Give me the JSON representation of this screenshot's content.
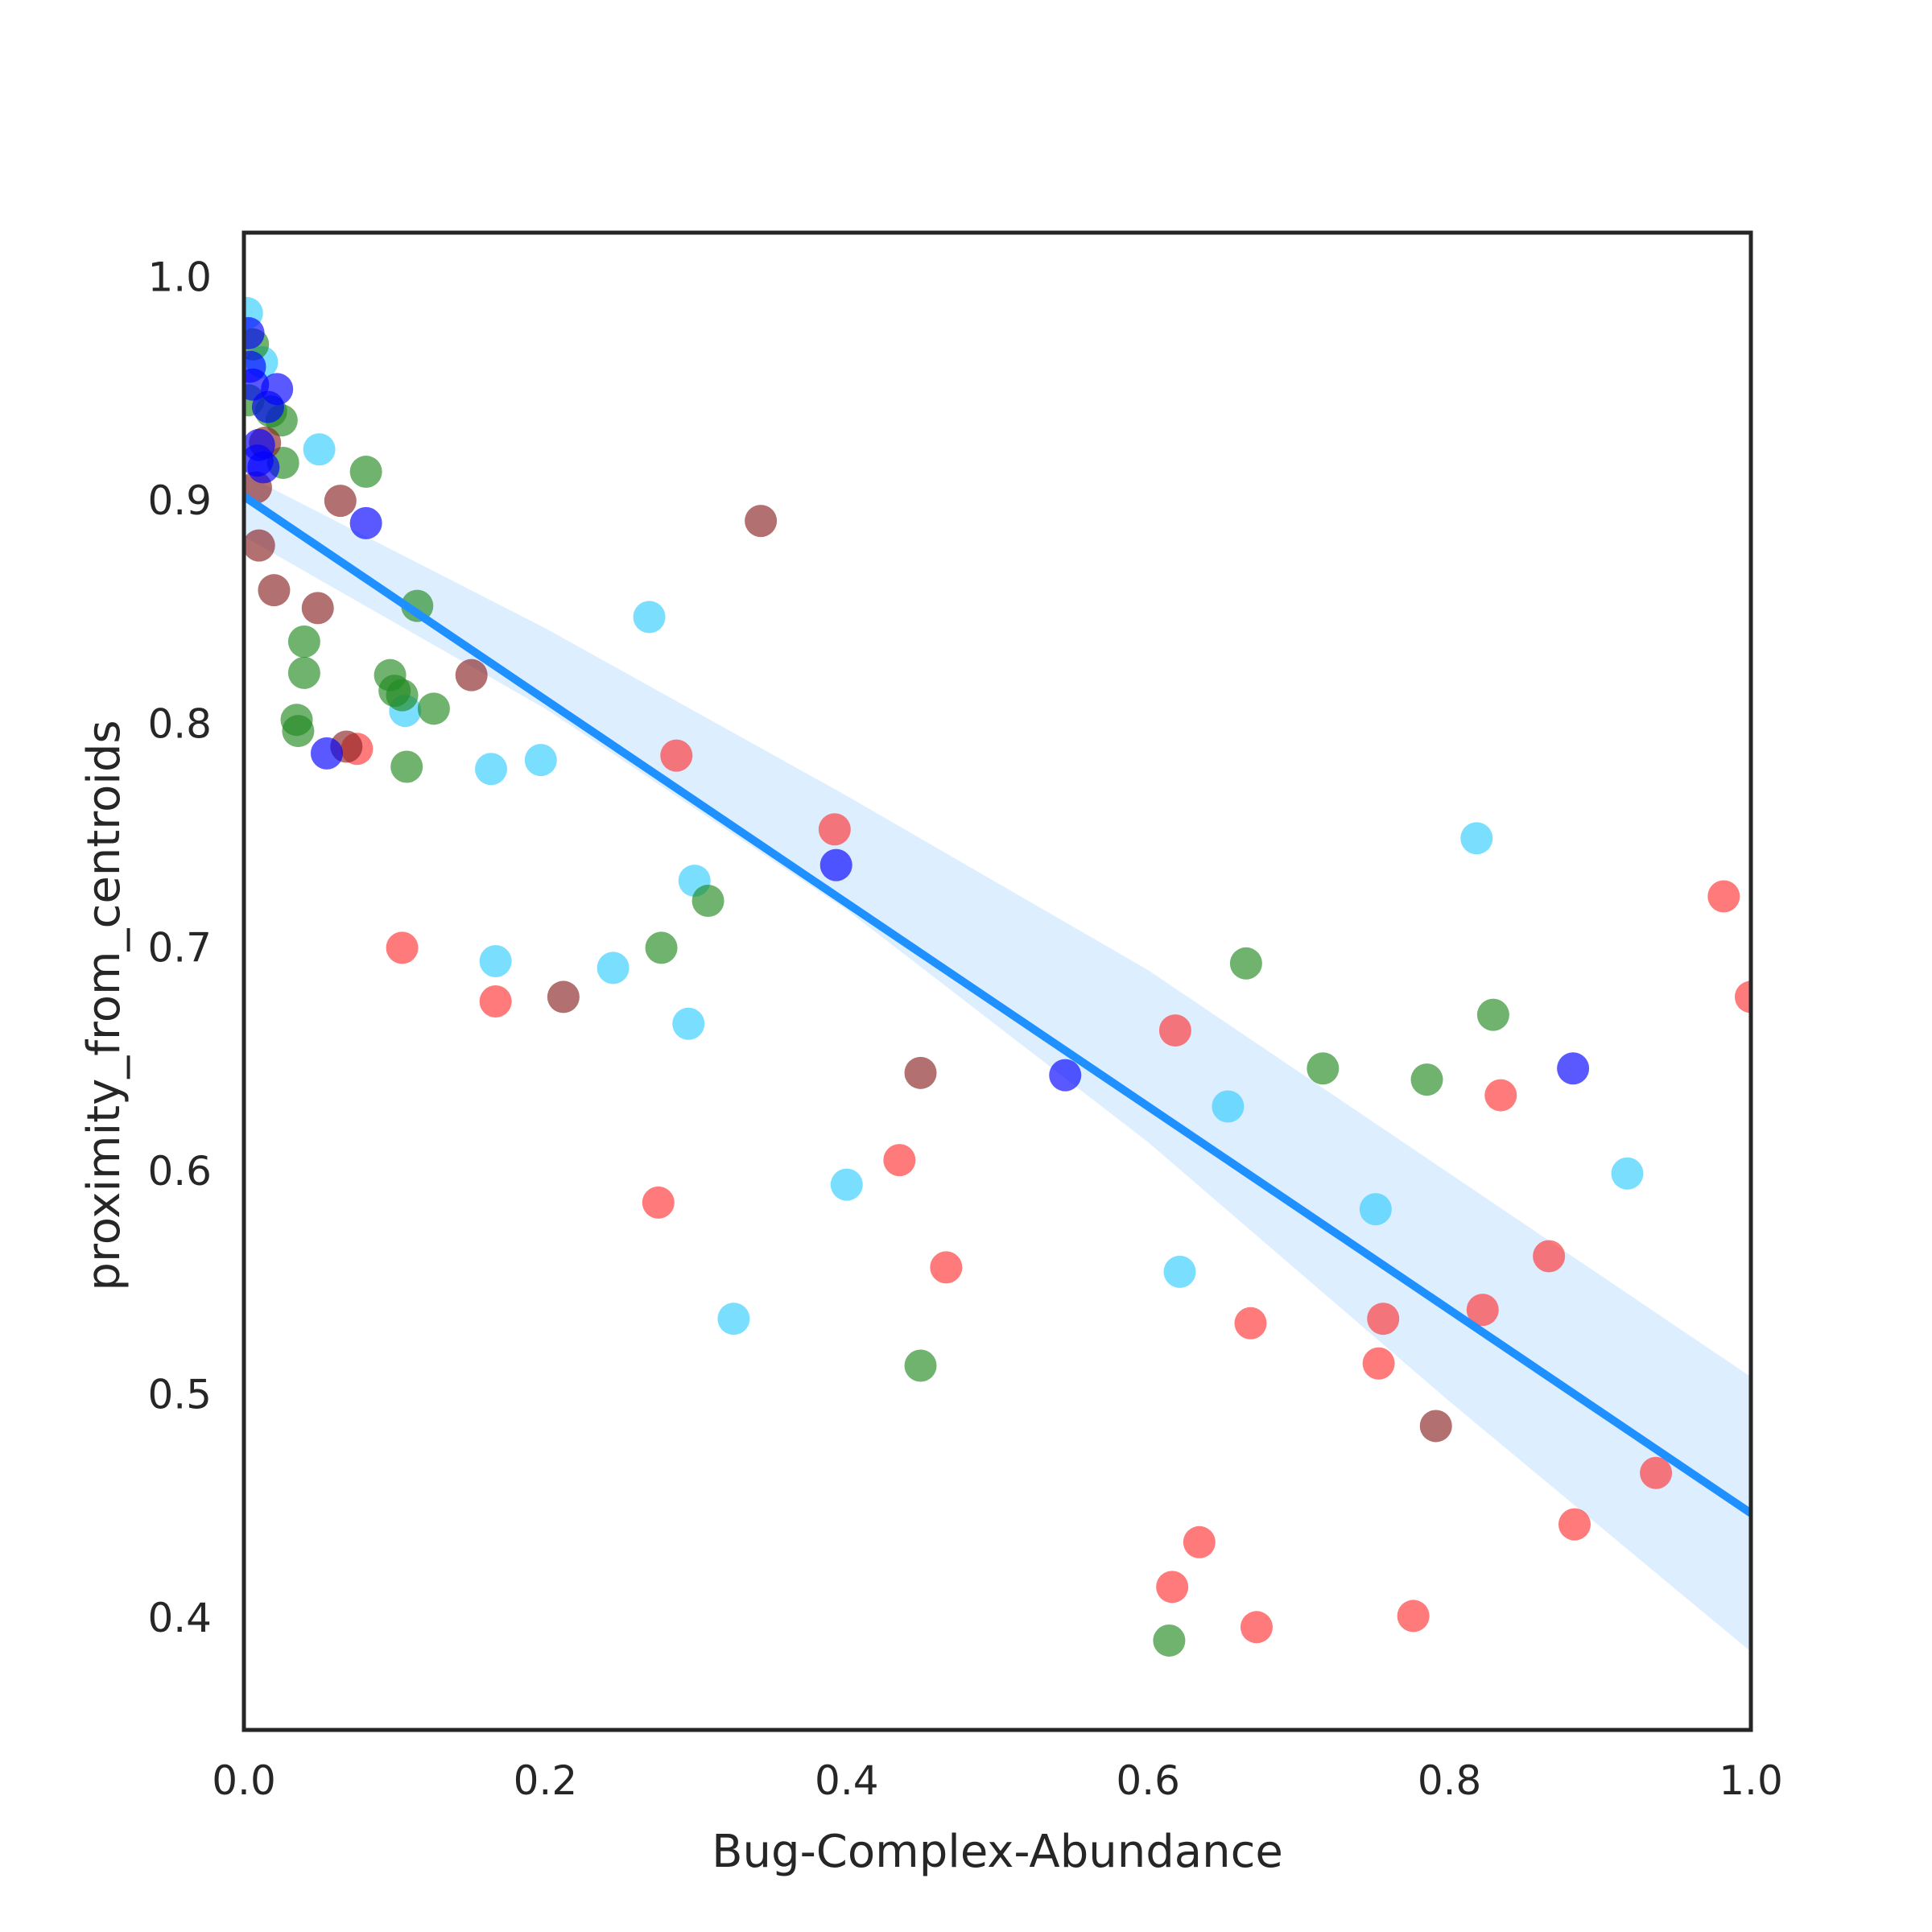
{
  "chart_data": {
    "type": "scatter",
    "title": "",
    "xlabel": "Bug-Complex-Abundance",
    "ylabel": "proximity_from_centroids",
    "xlim": [
      0.0,
      1.0
    ],
    "ylim": [
      0.35,
      1.02
    ],
    "x_ticks": [
      "0.0",
      "0.2",
      "0.4",
      "0.6",
      "0.8",
      "1.0"
    ],
    "y_ticks": [
      "0.4",
      "0.5",
      "0.6",
      "0.7",
      "0.8",
      "0.9",
      "1.0"
    ],
    "grid": false,
    "legend": "none",
    "regression": {
      "color": "#1e90ff",
      "band_color": "#1e90ff",
      "line": [
        [
          0.0,
          0.902
        ],
        [
          1.0,
          0.447
        ]
      ],
      "ci_upper": [
        [
          0.0,
          0.912
        ],
        [
          0.2,
          0.843
        ],
        [
          0.4,
          0.768
        ],
        [
          0.6,
          0.69
        ],
        [
          0.8,
          0.599
        ],
        [
          1.0,
          0.508
        ]
      ],
      "ci_lower": [
        [
          0.0,
          0.884
        ],
        [
          0.2,
          0.807
        ],
        [
          0.4,
          0.717
        ],
        [
          0.6,
          0.613
        ],
        [
          0.8,
          0.497
        ],
        [
          1.0,
          0.385
        ]
      ]
    },
    "series": [
      {
        "color": "#ff3333",
        "points": [
          [
            0.075,
            0.789
          ],
          [
            0.105,
            0.7
          ],
          [
            0.167,
            0.676
          ],
          [
            0.275,
            0.586
          ],
          [
            0.287,
            0.786
          ],
          [
            0.392,
            0.753
          ],
          [
            0.435,
            0.605
          ],
          [
            0.466,
            0.557
          ],
          [
            0.618,
            0.663
          ],
          [
            0.616,
            0.414
          ],
          [
            0.634,
            0.434
          ],
          [
            0.668,
            0.532
          ],
          [
            0.672,
            0.396
          ],
          [
            0.753,
            0.514
          ],
          [
            0.756,
            0.534
          ],
          [
            0.776,
            0.401
          ],
          [
            0.822,
            0.538
          ],
          [
            0.834,
            0.634
          ],
          [
            0.866,
            0.562
          ],
          [
            0.883,
            0.442
          ],
          [
            0.937,
            0.465
          ],
          [
            0.982,
            0.723
          ],
          [
            1.0,
            0.678
          ]
        ]
      },
      {
        "color": "#33ccff",
        "points": [
          [
            0.002,
            0.984
          ],
          [
            0.012,
            0.962
          ],
          [
            0.05,
            0.923
          ],
          [
            0.107,
            0.806
          ],
          [
            0.164,
            0.78
          ],
          [
            0.197,
            0.784
          ],
          [
            0.245,
            0.691
          ],
          [
            0.269,
            0.848
          ],
          [
            0.295,
            0.666
          ],
          [
            0.299,
            0.73
          ],
          [
            0.325,
            0.534
          ],
          [
            0.167,
            0.694
          ],
          [
            0.4,
            0.594
          ],
          [
            0.621,
            0.555
          ],
          [
            0.653,
            0.629
          ],
          [
            0.751,
            0.583
          ],
          [
            0.818,
            0.749
          ],
          [
            0.918,
            0.599
          ]
        ]
      },
      {
        "color": "#228b22",
        "points": [
          [
            0.003,
            0.945
          ],
          [
            0.006,
            0.97
          ],
          [
            0.018,
            0.94
          ],
          [
            0.025,
            0.936
          ],
          [
            0.026,
            0.917
          ],
          [
            0.04,
            0.837
          ],
          [
            0.04,
            0.823
          ],
          [
            0.035,
            0.802
          ],
          [
            0.036,
            0.797
          ],
          [
            0.081,
            0.913
          ],
          [
            0.097,
            0.822
          ],
          [
            0.1,
            0.815
          ],
          [
            0.105,
            0.813
          ],
          [
            0.108,
            0.781
          ],
          [
            0.115,
            0.853
          ],
          [
            0.126,
            0.807
          ],
          [
            0.277,
            0.7
          ],
          [
            0.308,
            0.721
          ],
          [
            0.449,
            0.513
          ],
          [
            0.614,
            0.39
          ],
          [
            0.665,
            0.693
          ],
          [
            0.716,
            0.646
          ],
          [
            0.785,
            0.641
          ],
          [
            0.829,
            0.67
          ]
        ]
      },
      {
        "color": "#8b2323",
        "points": [
          [
            0.008,
            0.906
          ],
          [
            0.01,
            0.88
          ],
          [
            0.014,
            0.926
          ],
          [
            0.02,
            0.86
          ],
          [
            0.049,
            0.852
          ],
          [
            0.064,
            0.9
          ],
          [
            0.068,
            0.79
          ],
          [
            0.151,
            0.822
          ],
          [
            0.212,
            0.678
          ],
          [
            0.343,
            0.891
          ],
          [
            0.449,
            0.644
          ],
          [
            0.791,
            0.486
          ]
        ]
      },
      {
        "color": "#0000ff",
        "points": [
          [
            0.003,
            0.975
          ],
          [
            0.004,
            0.96
          ],
          [
            0.006,
            0.952
          ],
          [
            0.009,
            0.918
          ],
          [
            0.01,
            0.925
          ],
          [
            0.013,
            0.915
          ],
          [
            0.016,
            0.942
          ],
          [
            0.022,
            0.95
          ],
          [
            0.055,
            0.787
          ],
          [
            0.081,
            0.89
          ],
          [
            0.393,
            0.737
          ],
          [
            0.545,
            0.643
          ],
          [
            0.882,
            0.646
          ]
        ]
      }
    ]
  }
}
